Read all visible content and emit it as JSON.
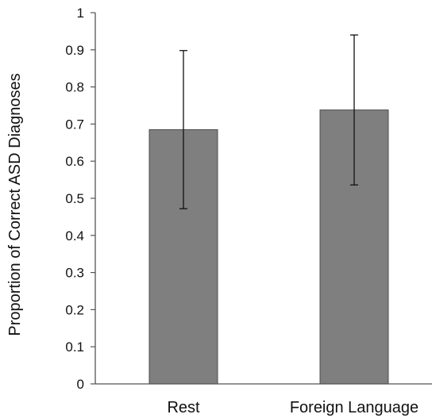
{
  "chart_data": {
    "type": "bar",
    "title": "",
    "xlabel": "",
    "ylabel": "Proportion of Correct ASD Diagnoses",
    "categories": [
      "Rest",
      "Foreign Language"
    ],
    "values": [
      0.685,
      0.738
    ],
    "error_bars": [
      {
        "low": 0.472,
        "high": 0.898
      },
      {
        "low": 0.536,
        "high": 0.94
      }
    ],
    "ylim": [
      0,
      1
    ],
    "yticks": [
      0,
      0.1,
      0.2,
      0.3,
      0.4,
      0.5,
      0.6,
      0.7,
      0.8,
      0.9,
      1
    ],
    "ytick_labels": [
      "0",
      "0.1",
      "0.2",
      "0.3",
      "0.4",
      "0.5",
      "0.6",
      "0.7",
      "0.8",
      "0.9",
      "1"
    ],
    "grid": false,
    "legend": "none",
    "bar_color": "#7f7f7f",
    "bar_edge_color": "#4d4d4d",
    "axis_color": "#555555"
  }
}
